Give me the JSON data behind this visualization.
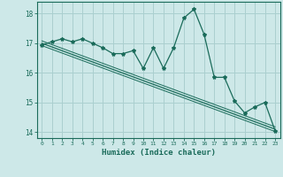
{
  "xlabel": "Humidex (Indice chaleur)",
  "ylabel": "",
  "background_color": "#cde8e8",
  "grid_color": "#aacfcf",
  "line_color": "#1a6b5a",
  "xlim": [
    -0.5,
    23.5
  ],
  "ylim": [
    13.8,
    18.4
  ],
  "xticks": [
    0,
    1,
    2,
    3,
    4,
    5,
    6,
    7,
    8,
    9,
    10,
    11,
    12,
    13,
    14,
    15,
    16,
    17,
    18,
    19,
    20,
    21,
    22,
    23
  ],
  "yticks": [
    14,
    15,
    16,
    17,
    18
  ],
  "x_data": [
    0,
    1,
    2,
    3,
    4,
    5,
    6,
    7,
    8,
    9,
    10,
    11,
    12,
    13,
    14,
    15,
    16,
    17,
    18,
    19,
    20,
    21,
    22,
    23
  ],
  "y_data": [
    16.95,
    17.05,
    17.15,
    17.05,
    17.15,
    17.0,
    16.85,
    16.65,
    16.65,
    16.75,
    16.15,
    16.85,
    16.15,
    16.85,
    17.85,
    18.15,
    17.3,
    15.85,
    15.85,
    15.05,
    14.65,
    14.85,
    15.0,
    14.05
  ],
  "trend_y_start": 17.0,
  "trend_y_end": 14.1,
  "trend_y_start2": 17.08,
  "trend_y_end2": 14.18,
  "trend_y_start3": 16.92,
  "trend_y_end3": 14.02
}
